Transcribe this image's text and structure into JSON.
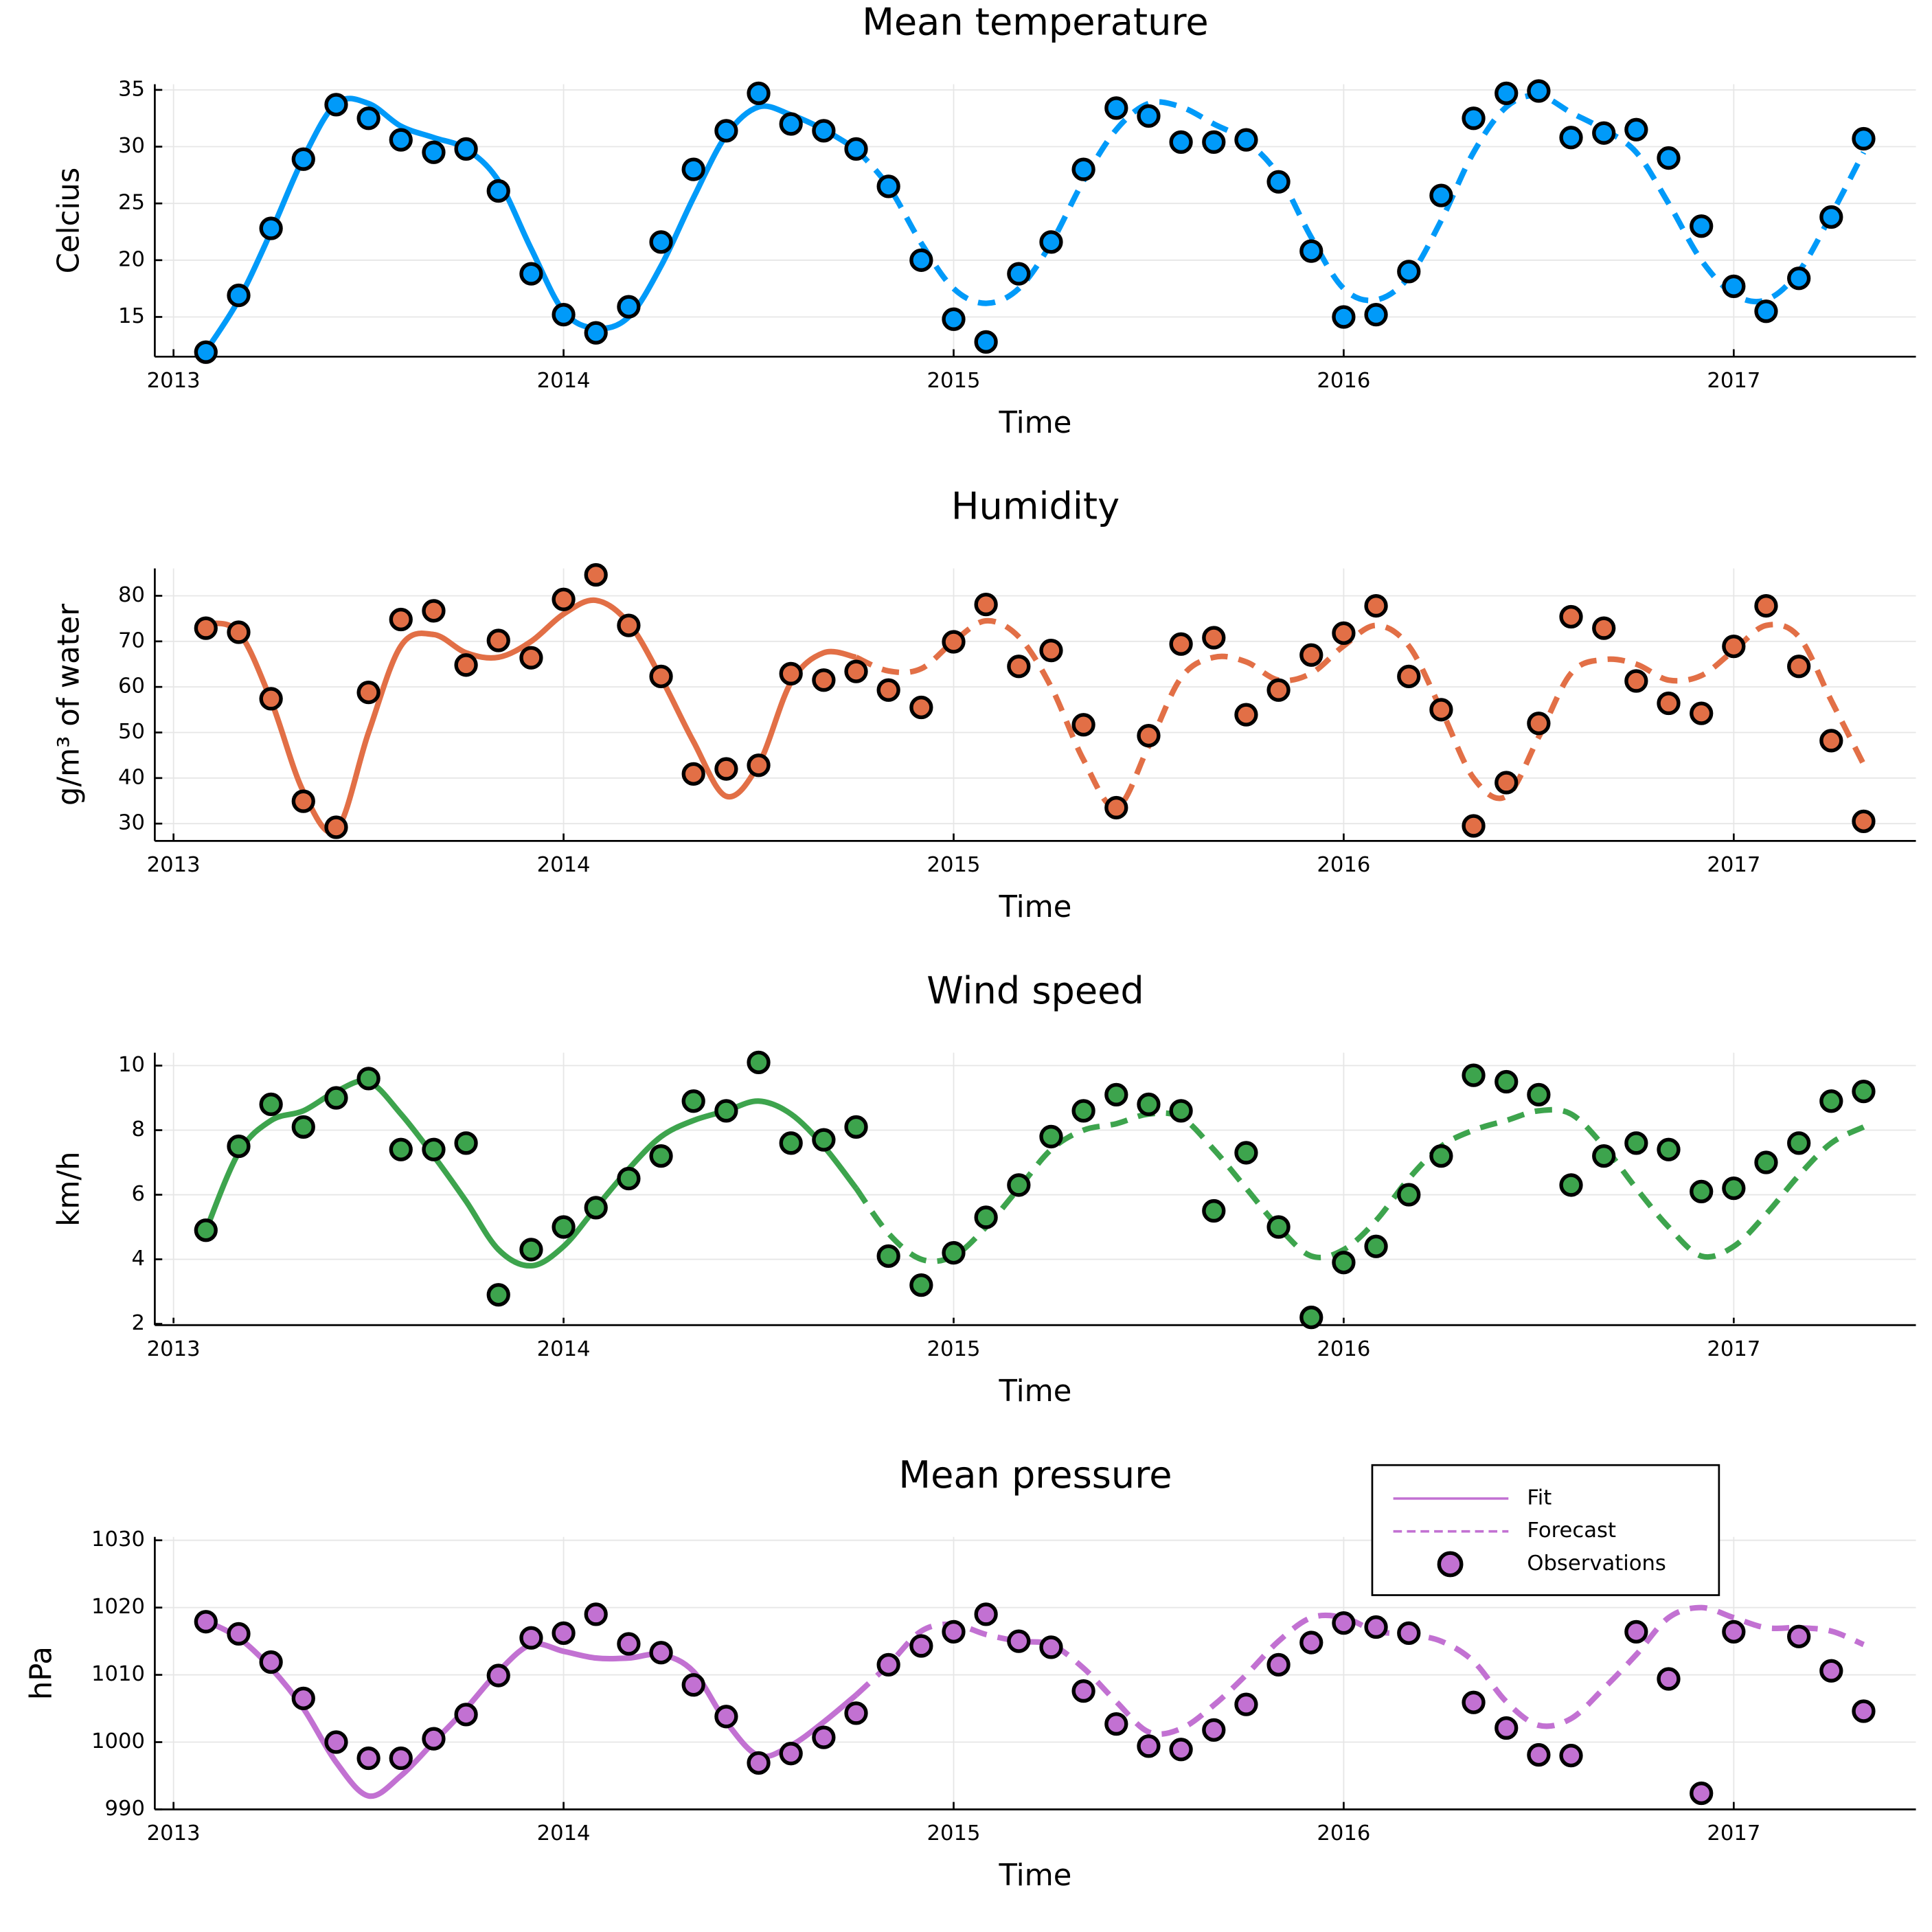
{
  "chart_data": [
    {
      "type": "line",
      "title": "Mean temperature",
      "xlabel": "Time",
      "ylabel": "Celcius",
      "x": [
        2013.083,
        2013.167,
        2013.25,
        2013.333,
        2013.417,
        2013.5,
        2013.583,
        2013.667,
        2013.75,
        2013.833,
        2013.917,
        2014,
        2014.083,
        2014.167,
        2014.25,
        2014.333,
        2014.417,
        2014.5,
        2014.583,
        2014.667,
        2014.75,
        2014.833,
        2014.917,
        2015,
        2015.083,
        2015.167,
        2015.25,
        2015.333,
        2015.417,
        2015.5,
        2015.583,
        2015.667,
        2015.75,
        2015.833,
        2015.917,
        2016,
        2016.083,
        2016.167,
        2016.25,
        2016.333,
        2016.417,
        2016.5,
        2016.583,
        2016.667,
        2016.75,
        2016.833,
        2016.917,
        2017,
        2017.083,
        2017.167,
        2017.25,
        2017.333
      ],
      "xlim": [
        2012.952,
        2017.467
      ],
      "xticks": [
        2013,
        2014,
        2015,
        2016,
        2017
      ],
      "ylim": [
        11.5,
        35.5
      ],
      "yticks": [
        15,
        20,
        25,
        30,
        35
      ],
      "grid": true,
      "series": [
        {
          "style": "solid",
          "color": "#009af9",
          "values": [
            12,
            16.5,
            22.5,
            29,
            33.8,
            33.8,
            31.8,
            30.8,
            29.8,
            27,
            21,
            15.5,
            14,
            15,
            19.5,
            25.5,
            31,
            33.5,
            32.8,
            31.5,
            29.8,
            null,
            null,
            null,
            null,
            null,
            null,
            null,
            null,
            null,
            null,
            null,
            null,
            null,
            null,
            null,
            null,
            null,
            null,
            null,
            null,
            null,
            null,
            null,
            null,
            null,
            null,
            null,
            null,
            null,
            null,
            null
          ]
        },
        {
          "style": "dashed",
          "color": "#009af9",
          "values": [
            null,
            null,
            null,
            null,
            null,
            null,
            null,
            null,
            null,
            null,
            null,
            null,
            null,
            null,
            null,
            null,
            null,
            null,
            null,
            null,
            29.8,
            26.5,
            21.5,
            17.5,
            16.2,
            17.5,
            21.5,
            27,
            31.5,
            33.8,
            33.5,
            32,
            30.5,
            27.5,
            22,
            17.5,
            16.5,
            18.5,
            23.5,
            29.5,
            33.5,
            34.5,
            33,
            31.5,
            29.5,
            25,
            20,
            17,
            16.5,
            19,
            24,
            29.5
          ]
        },
        {
          "style": "markers",
          "color": "#009af9",
          "values": [
            11.9,
            16.9,
            22.8,
            28.9,
            33.7,
            32.5,
            30.6,
            29.5,
            29.8,
            26.1,
            18.8,
            15.2,
            13.6,
            15.9,
            21.6,
            28,
            31.4,
            34.7,
            32,
            31.4,
            29.8,
            26.5,
            20,
            14.8,
            12.8,
            18.8,
            21.6,
            28,
            33.4,
            32.7,
            30.4,
            30.4,
            30.6,
            26.9,
            20.8,
            15,
            15.2,
            19,
            25.7,
            32.5,
            34.7,
            34.9,
            30.8,
            31.2,
            31.5,
            29,
            23,
            17.7,
            15.5,
            18.4,
            23.8,
            30.7
          ]
        }
      ]
    },
    {
      "type": "line",
      "title": "Humidity",
      "xlabel": "Time",
      "ylabel": "g/m³ of water",
      "x": [
        2013.083,
        2013.167,
        2013.25,
        2013.333,
        2013.417,
        2013.5,
        2013.583,
        2013.667,
        2013.75,
        2013.833,
        2013.917,
        2014,
        2014.083,
        2014.167,
        2014.25,
        2014.333,
        2014.417,
        2014.5,
        2014.583,
        2014.667,
        2014.75,
        2014.833,
        2014.917,
        2015,
        2015.083,
        2015.167,
        2015.25,
        2015.333,
        2015.417,
        2015.5,
        2015.583,
        2015.667,
        2015.75,
        2015.833,
        2015.917,
        2016,
        2016.083,
        2016.167,
        2016.25,
        2016.333,
        2016.417,
        2016.5,
        2016.583,
        2016.667,
        2016.75,
        2016.833,
        2016.917,
        2017,
        2017.083,
        2017.167,
        2017.25,
        2017.333
      ],
      "xlim": [
        2012.952,
        2017.467
      ],
      "xticks": [
        2013,
        2014,
        2015,
        2016,
        2017
      ],
      "ylim": [
        26.2,
        86
      ],
      "yticks": [
        30,
        40,
        50,
        60,
        70,
        80
      ],
      "grid": true,
      "series": [
        {
          "style": "solid",
          "color": "#e26f46",
          "values": [
            74,
            72,
            57,
            37,
            28.5,
            50,
            69,
            71.5,
            67.5,
            66.5,
            70,
            76,
            79,
            74,
            62,
            48,
            36,
            43,
            61,
            67.5,
            66.5,
            null,
            null,
            null,
            null,
            null,
            null,
            null,
            null,
            null,
            null,
            null,
            null,
            null,
            null,
            null,
            null,
            null,
            null,
            null,
            null,
            null,
            null,
            null,
            null,
            null,
            null,
            null,
            null,
            null,
            null,
            null
          ]
        },
        {
          "style": "dashed",
          "color": "#e26f46",
          "values": [
            null,
            null,
            null,
            null,
            null,
            null,
            null,
            null,
            null,
            null,
            null,
            null,
            null,
            null,
            null,
            null,
            null,
            null,
            null,
            null,
            66.5,
            63.5,
            64,
            70,
            74.5,
            71,
            60,
            44,
            33.5,
            47,
            62,
            66.5,
            65.5,
            61.5,
            63,
            69,
            73.5,
            69,
            55,
            40,
            36,
            49,
            63,
            66,
            65,
            61.5,
            62.5,
            68,
            73.5,
            71,
            57,
            43
          ]
        },
        {
          "style": "markers",
          "color": "#e26f46",
          "values": [
            72.9,
            72,
            57.4,
            34.9,
            29.2,
            58.8,
            74.8,
            76.7,
            64.8,
            70.2,
            66.4,
            79.2,
            84.6,
            73.5,
            62.3,
            40.9,
            42,
            42.8,
            62.9,
            61.5,
            63.4,
            59.3,
            55.5,
            69.9,
            78.1,
            64.5,
            68,
            51.7,
            33.5,
            49.3,
            69.4,
            70.8,
            53.9,
            59.3,
            67,
            71.8,
            77.8,
            62.3,
            55,
            29.5,
            39,
            52,
            75.4,
            72.9,
            61.3,
            56.4,
            54.2,
            68.9,
            77.8,
            64.5,
            48.2,
            30.5
          ]
        }
      ]
    },
    {
      "type": "line",
      "title": "Wind speed",
      "xlabel": "Time",
      "ylabel": "km/h",
      "x": [
        2013.083,
        2013.167,
        2013.25,
        2013.333,
        2013.417,
        2013.5,
        2013.583,
        2013.667,
        2013.75,
        2013.833,
        2013.917,
        2014,
        2014.083,
        2014.167,
        2014.25,
        2014.333,
        2014.417,
        2014.5,
        2014.583,
        2014.667,
        2014.75,
        2014.833,
        2014.917,
        2015,
        2015.083,
        2015.167,
        2015.25,
        2015.333,
        2015.417,
        2015.5,
        2015.583,
        2015.667,
        2015.75,
        2015.833,
        2015.917,
        2016,
        2016.083,
        2016.167,
        2016.25,
        2016.333,
        2016.417,
        2016.5,
        2016.583,
        2016.667,
        2016.75,
        2016.833,
        2016.917,
        2017,
        2017.083,
        2017.167,
        2017.25,
        2017.333
      ],
      "xlim": [
        2012.952,
        2017.467
      ],
      "xticks": [
        2013,
        2014,
        2015,
        2016,
        2017
      ],
      "ylim": [
        1.96,
        10.4
      ],
      "yticks": [
        2,
        4,
        6,
        8,
        10
      ],
      "grid": true,
      "series": [
        {
          "style": "solid",
          "color": "#3da44d",
          "values": [
            4.9,
            7.3,
            8.3,
            8.6,
            9.2,
            9.5,
            8.5,
            7.2,
            5.8,
            4.3,
            3.8,
            4.4,
            5.6,
            6.8,
            7.8,
            8.3,
            8.6,
            8.9,
            8.5,
            7.5,
            6.2,
            null,
            null,
            null,
            null,
            null,
            null,
            null,
            null,
            null,
            null,
            null,
            null,
            null,
            null,
            null,
            null,
            null,
            null,
            null,
            null,
            null,
            null,
            null,
            null,
            null,
            null,
            null,
            null,
            null,
            null,
            null
          ]
        },
        {
          "style": "dashed",
          "color": "#3da44d",
          "values": [
            null,
            null,
            null,
            null,
            null,
            null,
            null,
            null,
            null,
            null,
            null,
            null,
            null,
            null,
            null,
            null,
            null,
            null,
            null,
            null,
            6.2,
            4.8,
            4,
            4.1,
            5,
            6.2,
            7.4,
            8,
            8.2,
            8.5,
            8.4,
            7.4,
            6.2,
            5,
            4.1,
            4.3,
            5.2,
            6.5,
            7.5,
            8,
            8.3,
            8.6,
            8.5,
            7.5,
            6.2,
            5,
            4.1,
            4.4,
            5.4,
            6.6,
            7.6,
            8.1
          ]
        },
        {
          "style": "markers",
          "color": "#3da44d",
          "values": [
            4.9,
            7.5,
            8.8,
            8.1,
            9,
            9.6,
            7.4,
            7.4,
            7.6,
            2.9,
            4.3,
            5,
            5.6,
            6.5,
            7.2,
            8.9,
            8.6,
            10.1,
            7.6,
            7.7,
            8.1,
            4.1,
            3.2,
            4.2,
            5.3,
            6.3,
            7.8,
            8.6,
            9.1,
            8.8,
            8.6,
            5.5,
            7.3,
            5,
            2.2,
            3.9,
            4.4,
            6,
            7.2,
            9.7,
            9.5,
            9.1,
            6.3,
            7.2,
            7.6,
            7.4,
            6.1,
            6.2,
            7,
            7.6,
            8.9,
            9.2
          ]
        }
      ]
    },
    {
      "type": "line",
      "title": "Mean pressure",
      "xlabel": "Time",
      "ylabel": "hPa",
      "x": [
        2013.083,
        2013.167,
        2013.25,
        2013.333,
        2013.417,
        2013.5,
        2013.583,
        2013.667,
        2013.75,
        2013.833,
        2013.917,
        2014,
        2014.083,
        2014.167,
        2014.25,
        2014.333,
        2014.417,
        2014.5,
        2014.583,
        2014.667,
        2014.75,
        2014.833,
        2014.917,
        2015,
        2015.083,
        2015.167,
        2015.25,
        2015.333,
        2015.417,
        2015.5,
        2015.583,
        2015.667,
        2015.75,
        2015.833,
        2015.917,
        2016,
        2016.083,
        2016.167,
        2016.25,
        2016.333,
        2016.417,
        2016.5,
        2016.583,
        2016.667,
        2016.75,
        2016.833,
        2016.917,
        2017,
        2017.083,
        2017.167,
        2017.25,
        2017.333
      ],
      "xlim": [
        2012.952,
        2017.467
      ],
      "xticks": [
        2013,
        2014,
        2015,
        2016,
        2017
      ],
      "ylim": [
        990,
        1030.5
      ],
      "yticks": [
        990,
        1000,
        1010,
        1020,
        1030
      ],
      "grid": true,
      "legend": "top right",
      "series": [
        {
          "name": "Fit",
          "style": "solid",
          "color": "#c271d2",
          "values": [
            1018,
            1015.5,
            1011,
            1005,
            997,
            992,
            995,
            1000,
            1005,
            1010.5,
            1014.5,
            1013.5,
            1012.5,
            1012.5,
            1013,
            1010.5,
            1003,
            998,
            999.5,
            1003,
            1007,
            null,
            null,
            null,
            null,
            null,
            null,
            null,
            null,
            null,
            null,
            null,
            null,
            null,
            null,
            null,
            null,
            null,
            null,
            null,
            null,
            null,
            null,
            null,
            null,
            null,
            null,
            null,
            null,
            null,
            null,
            null
          ]
        },
        {
          "name": "Forecast",
          "style": "dashed",
          "color": "#c271d2",
          "values": [
            null,
            null,
            null,
            null,
            null,
            null,
            null,
            null,
            null,
            null,
            null,
            null,
            null,
            null,
            null,
            null,
            null,
            null,
            null,
            null,
            1007,
            1011.5,
            1016.5,
            1017.5,
            1016,
            1015,
            1014.5,
            1011,
            1006,
            1001.5,
            1002,
            1005.5,
            1010,
            1015,
            1018.5,
            1018.5,
            1016.5,
            1016,
            1015,
            1012,
            1006,
            1002.5,
            1003.5,
            1008,
            1013,
            1018.5,
            1020,
            1018.5,
            1017,
            1017,
            1016.5,
            1014.5
          ]
        },
        {
          "name": "Observations",
          "style": "markers",
          "color": "#c271d2",
          "values": [
            1017.9,
            1016.1,
            1011.9,
            1006.5,
            1000,
            997.6,
            997.6,
            1000.5,
            1004.1,
            1009.9,
            1015.5,
            1016.2,
            1019,
            1014.6,
            1013.3,
            1008.5,
            1003.8,
            996.9,
            998.3,
            1000.7,
            1004.3,
            1011.5,
            1014.3,
            1016.4,
            1019,
            1015,
            1014.1,
            1007.6,
            1002.7,
            999.4,
            998.9,
            1001.8,
            1005.6,
            1011.5,
            1014.8,
            1017.7,
            1017.1,
            1016.2,
            null,
            1005.9,
            1002.1,
            998.1,
            998,
            null,
            1016.4,
            1009.4,
            992.4,
            1016.4,
            null,
            1015.7,
            1010.6,
            1004.6
          ]
        }
      ]
    }
  ]
}
